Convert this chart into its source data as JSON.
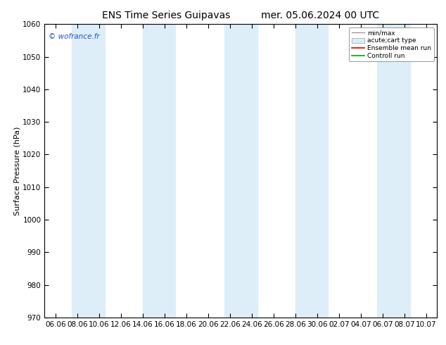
{
  "title_left": "ENS Time Series Guipavas",
  "title_right": "mer. 05.06.2024 00 UTC",
  "ylabel": "Surface Pressure (hPa)",
  "ylim": [
    970,
    1060
  ],
  "yticks": [
    970,
    980,
    990,
    1000,
    1010,
    1020,
    1030,
    1040,
    1050,
    1060
  ],
  "xtick_labels": [
    "06.06",
    "08.06",
    "10.06",
    "12.06",
    "14.06",
    "16.06",
    "18.06",
    "20.06",
    "22.06",
    "24.06",
    "26.06",
    "28.06",
    "30.06",
    "02.07",
    "04.07",
    "06.07",
    "08.07",
    "10.07"
  ],
  "watermark": "© wofrance.fr",
  "background_color": "#ffffff",
  "plot_bg_color": "#ffffff",
  "shaded_band_color": "#ddeef8",
  "legend_entries": [
    "min/max",
    "acute;cart type",
    "Ensemble mean run",
    "Controll run"
  ],
  "title_fontsize": 10,
  "axis_fontsize": 8,
  "tick_fontsize": 7.5
}
